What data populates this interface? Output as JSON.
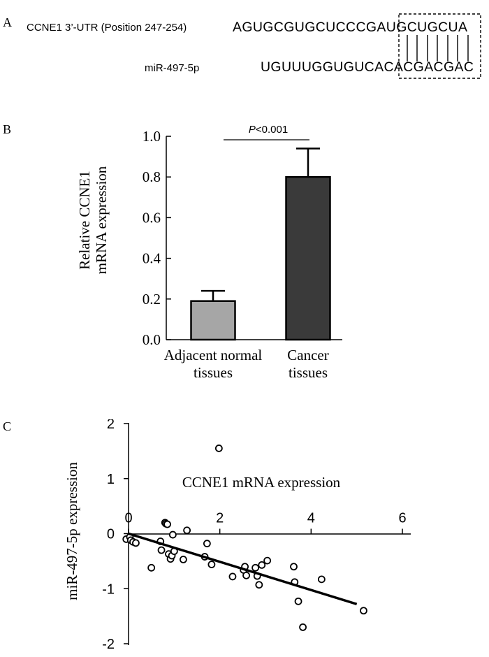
{
  "panels": {
    "a": "A",
    "b": "B",
    "c": "C"
  },
  "panel_a": {
    "label_top": "CCNE1 3’-UTR (Position 247-254)",
    "seq_top": "AGUGCGUGCUCCCGAUGCUGCUA",
    "label_bottom": "miR-497-5p",
    "seq_bottom": "UGUUUGGUGUCACACGACGAC"
  },
  "chart_data": [
    {
      "type": "bar",
      "panel": "B",
      "categories": [
        {
          "line1": "Adjacent normal",
          "line2": "tissues"
        },
        {
          "line1": "Cancer",
          "line2": "tissues"
        }
      ],
      "values": [
        0.19,
        0.8
      ],
      "errors": [
        0.05,
        0.14
      ],
      "colors": [
        "#a6a6a6",
        "#3a3a3a"
      ],
      "ylabel_line1": "Relative CCNE1",
      "ylabel_line2": "mRNA expression",
      "ylim": [
        0,
        1.0
      ],
      "yticks": [
        "0.0",
        "0.2",
        "0.4",
        "0.6",
        "0.8",
        "1.0"
      ],
      "annotation_p": "P",
      "annotation_rest": "<0.001"
    },
    {
      "type": "scatter",
      "panel": "C",
      "xlabel": "CCNE1 mRNA expression",
      "ylabel": "miR-497-5p expression",
      "xlim": [
        0,
        6
      ],
      "ylim": [
        -2,
        2
      ],
      "xticks": [
        "0",
        "2",
        "4",
        "6"
      ],
      "yticks": [
        "2",
        "1",
        "0",
        "-1",
        "-2"
      ],
      "trendline": {
        "x": [
          0,
          5.0
        ],
        "y": [
          0.0,
          -1.28
        ]
      },
      "points": [
        [
          -0.05,
          -0.1
        ],
        [
          0.03,
          -0.06
        ],
        [
          0.05,
          -0.12
        ],
        [
          0.1,
          -0.15
        ],
        [
          0.16,
          -0.17
        ],
        [
          0.5,
          -0.62
        ],
        [
          0.7,
          -0.14
        ],
        [
          0.72,
          -0.3
        ],
        [
          0.8,
          0.2
        ],
        [
          0.82,
          0.18
        ],
        [
          0.85,
          0.17
        ],
        [
          0.88,
          -0.37
        ],
        [
          0.92,
          -0.46
        ],
        [
          0.95,
          -0.4
        ],
        [
          0.97,
          -0.02
        ],
        [
          1.0,
          -0.32
        ],
        [
          1.2,
          -0.47
        ],
        [
          1.28,
          0.06
        ],
        [
          1.67,
          -0.42
        ],
        [
          1.72,
          -0.18
        ],
        [
          1.82,
          -0.56
        ],
        [
          1.98,
          1.55
        ],
        [
          2.28,
          -0.78
        ],
        [
          2.52,
          -0.66
        ],
        [
          2.55,
          -0.6
        ],
        [
          2.58,
          -0.76
        ],
        [
          2.78,
          -0.62
        ],
        [
          2.82,
          -0.77
        ],
        [
          2.86,
          -0.93
        ],
        [
          2.92,
          -0.57
        ],
        [
          3.04,
          -0.49
        ],
        [
          3.62,
          -0.6
        ],
        [
          3.64,
          -0.88
        ],
        [
          3.72,
          -1.23
        ],
        [
          3.82,
          -1.7
        ],
        [
          4.23,
          -0.83
        ],
        [
          5.15,
          -1.4
        ]
      ]
    }
  ]
}
